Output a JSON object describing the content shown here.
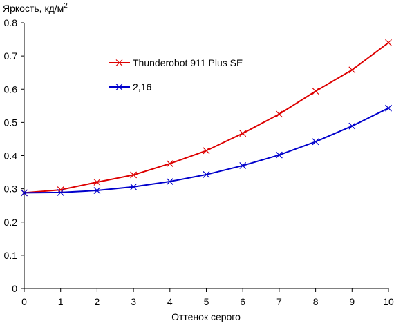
{
  "chart_data": {
    "type": "line",
    "title": "",
    "xlabel": "Оттенок серого",
    "ylabel": "Яркость, кд/м",
    "ylabel_superscript": "2",
    "xlim": [
      0,
      10
    ],
    "ylim": [
      0,
      0.8
    ],
    "x_ticks": [
      "0",
      "1",
      "2",
      "3",
      "4",
      "5",
      "6",
      "7",
      "8",
      "9",
      "10"
    ],
    "y_ticks": [
      "0",
      "0.1",
      "0.2",
      "0.3",
      "0.4",
      "0.5",
      "0.6",
      "0.7",
      "0.8"
    ],
    "grid": false,
    "legend_position": "upper-left-inside",
    "x": [
      0,
      1,
      2,
      3,
      4,
      5,
      6,
      7,
      8,
      9,
      10
    ],
    "series": [
      {
        "name": "Thunderobot 911 Plus SE",
        "color": "#dd0000",
        "marker": "x",
        "values": [
          0.288,
          0.297,
          0.32,
          0.342,
          0.376,
          0.415,
          0.467,
          0.525,
          0.594,
          0.658,
          0.74
        ]
      },
      {
        "name": "2,16",
        "color": "#0000cc",
        "marker": "x",
        "values": [
          0.288,
          0.289,
          0.295,
          0.306,
          0.322,
          0.343,
          0.37,
          0.402,
          0.442,
          0.489,
          0.543
        ]
      }
    ]
  }
}
